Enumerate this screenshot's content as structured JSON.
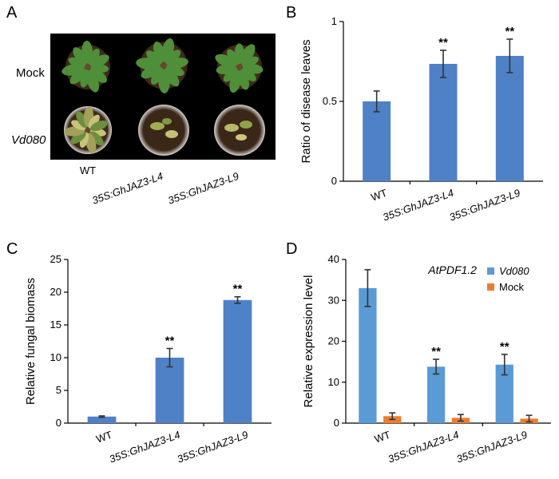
{
  "panels": {
    "A": {
      "letter": "A",
      "row_labels": [
        "Mock",
        "Vd080"
      ],
      "col_labels": [
        "WT",
        "35S:GhJAZ3-L4",
        "35S:GhJAZ3-L9"
      ]
    },
    "B": {
      "letter": "B"
    },
    "C": {
      "letter": "C"
    },
    "D": {
      "letter": "D"
    }
  },
  "chart_data": [
    {
      "panel": "B",
      "type": "bar",
      "categories": [
        "WT",
        "35S:GhJAZ3-L4",
        "35S:GhJAZ3-L9"
      ],
      "values": [
        0.5,
        0.735,
        0.785
      ],
      "errors": [
        0.065,
        0.085,
        0.105
      ],
      "significance": [
        "",
        "**",
        "**"
      ],
      "ylabel": "Ratio of disease leaves",
      "ylim": [
        0,
        1
      ],
      "yticks": [
        0,
        0.5,
        1
      ],
      "ytick_labels": [
        "0",
        "0.5",
        "1"
      ],
      "colors": {
        "bar": "#4f81c7"
      }
    },
    {
      "panel": "C",
      "type": "bar",
      "categories": [
        "WT",
        "35S:GhJAZ3-L4",
        "35S:GhJAZ3-L9"
      ],
      "values": [
        1.0,
        10.0,
        18.8
      ],
      "errors": [
        0.1,
        1.4,
        0.5
      ],
      "significance": [
        "",
        "**",
        "**"
      ],
      "ylabel": "Relative fungal biomass",
      "ylim": [
        0,
        25
      ],
      "yticks": [
        0,
        5,
        10,
        15,
        20,
        25
      ],
      "ytick_labels": [
        "0",
        "5",
        "10",
        "15",
        "20",
        "25"
      ],
      "colors": {
        "bar": "#4f81c7"
      }
    },
    {
      "panel": "D",
      "type": "bar",
      "title": "AtPDF1.2",
      "categories": [
        "WT",
        "35S:GhJAZ3-L4",
        "35S:GhJAZ3-L9"
      ],
      "series": [
        {
          "name": "Vd080",
          "values": [
            33.0,
            13.8,
            14.3
          ],
          "errors": [
            4.5,
            1.8,
            2.5
          ],
          "significance": [
            "",
            "**",
            "**"
          ],
          "color": "#5b9bd5"
        },
        {
          "name": "Mock",
          "values": [
            1.7,
            1.3,
            1.1
          ],
          "errors": [
            0.8,
            0.8,
            0.8
          ],
          "significance": [
            "",
            "",
            ""
          ],
          "color": "#ed7d31"
        }
      ],
      "ylabel": "Relative expression level",
      "ylim": [
        0,
        40
      ],
      "yticks": [
        0,
        10,
        20,
        30,
        40
      ],
      "ytick_labels": [
        "0",
        "10",
        "20",
        "30",
        "40"
      ],
      "legend": "top-right"
    }
  ]
}
